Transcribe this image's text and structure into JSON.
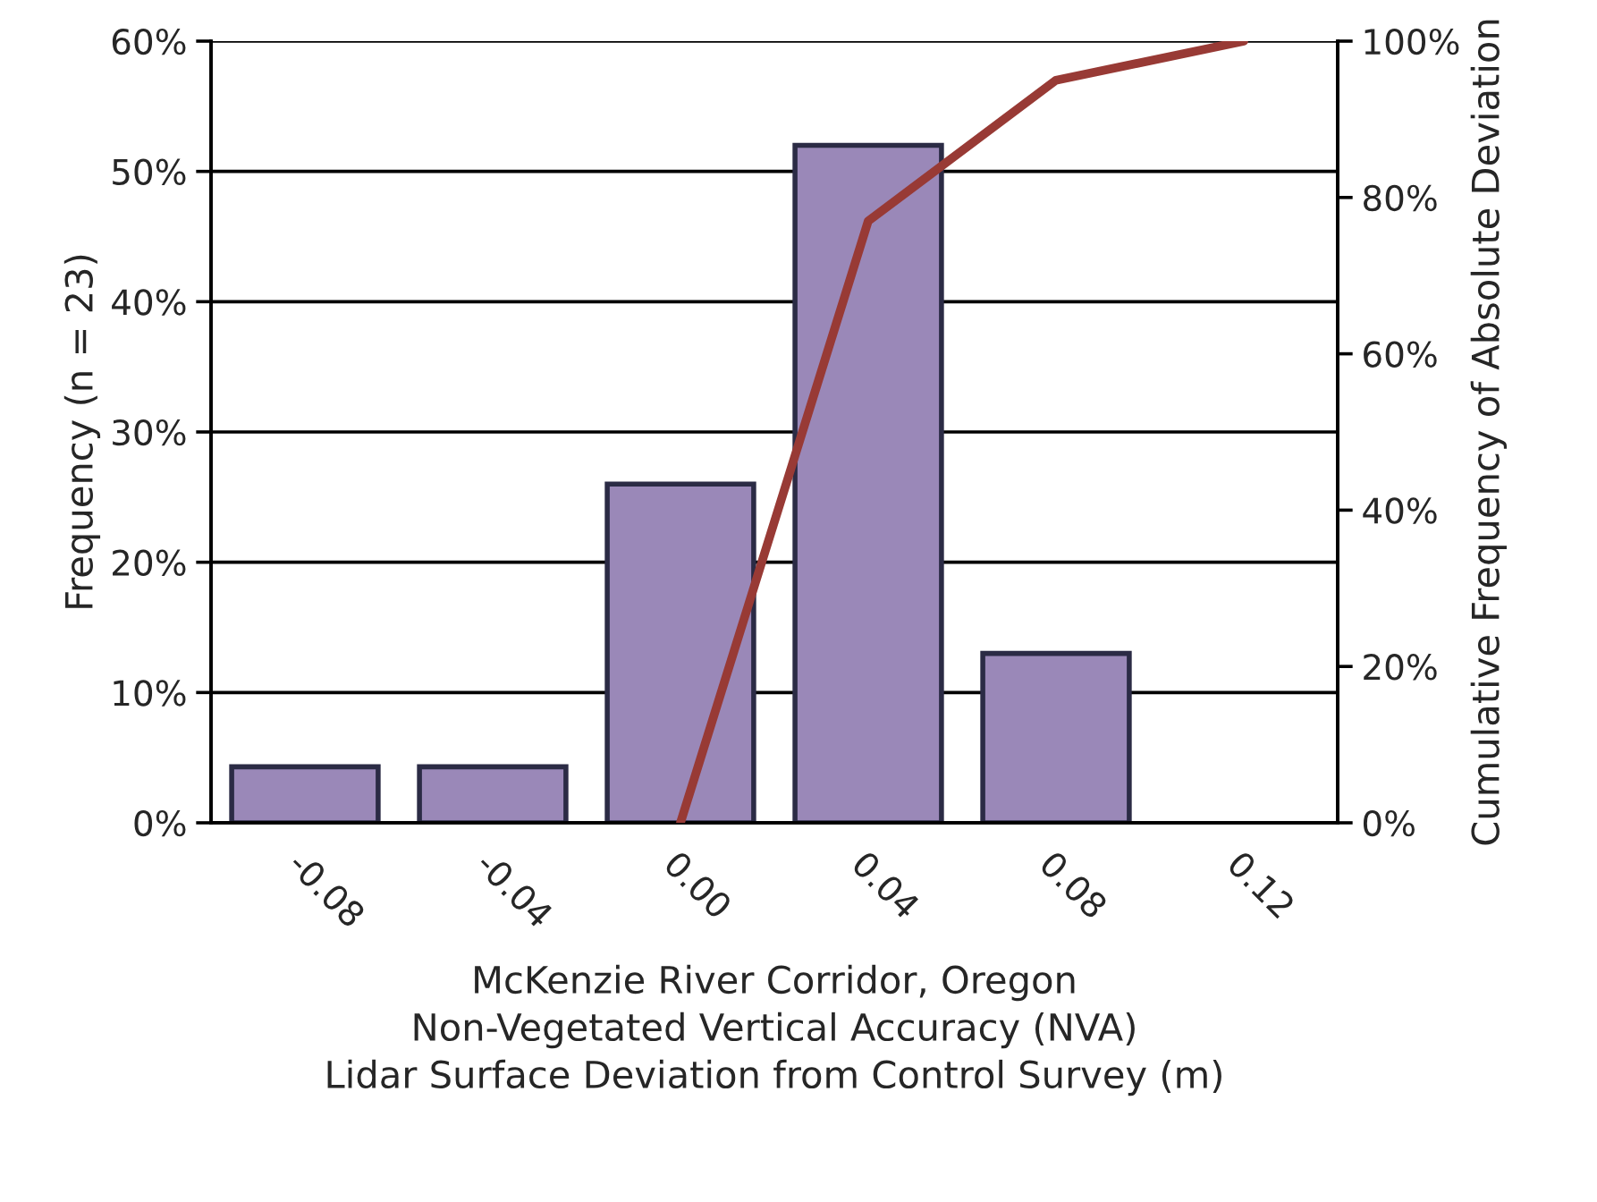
{
  "chart_data": {
    "type": "bar",
    "categories": [
      "-0.08",
      "-0.04",
      "0.00",
      "0.04",
      "0.08",
      "0.12"
    ],
    "series": [
      {
        "color": "#9a88b8",
        "values": [
          4.3,
          4.3,
          26,
          52,
          13,
          null
        ]
      },
      {
        "type": "line",
        "axis": "y2",
        "color": "#983a35",
        "values": [
          null,
          null,
          0,
          77,
          95,
          100
        ]
      }
    ],
    "xlabel": "McKenzie River Corridor, Oregon\nNon-Vegetated Vertical Accuracy (NVA)\nLidar Surface Deviation from Control Survey (m)",
    "ylabel": "Frequency (n = 23)",
    "y2label": "Cumulative Frequency of Absolute Deviation",
    "ylim": [
      0,
      60
    ],
    "yticks": [
      {
        "value": 0,
        "label": "0%"
      },
      {
        "value": 10,
        "label": "10%"
      },
      {
        "value": 20,
        "label": "20%"
      },
      {
        "value": 30,
        "label": "30%"
      },
      {
        "value": 40,
        "label": "40%"
      },
      {
        "value": 50,
        "label": "50%"
      },
      {
        "value": 60,
        "label": "60%"
      }
    ],
    "y2lim": [
      0,
      100
    ],
    "y2ticks": [
      {
        "value": 0,
        "label": "0%"
      },
      {
        "value": 20,
        "label": "20%"
      },
      {
        "value": 40,
        "label": "40%"
      },
      {
        "value": 60,
        "label": "60%"
      },
      {
        "value": 80,
        "label": "80%"
      },
      {
        "value": 100,
        "label": "100%"
      }
    ],
    "grid": "y",
    "legend": false,
    "marker": "none",
    "line_style": "solid"
  }
}
